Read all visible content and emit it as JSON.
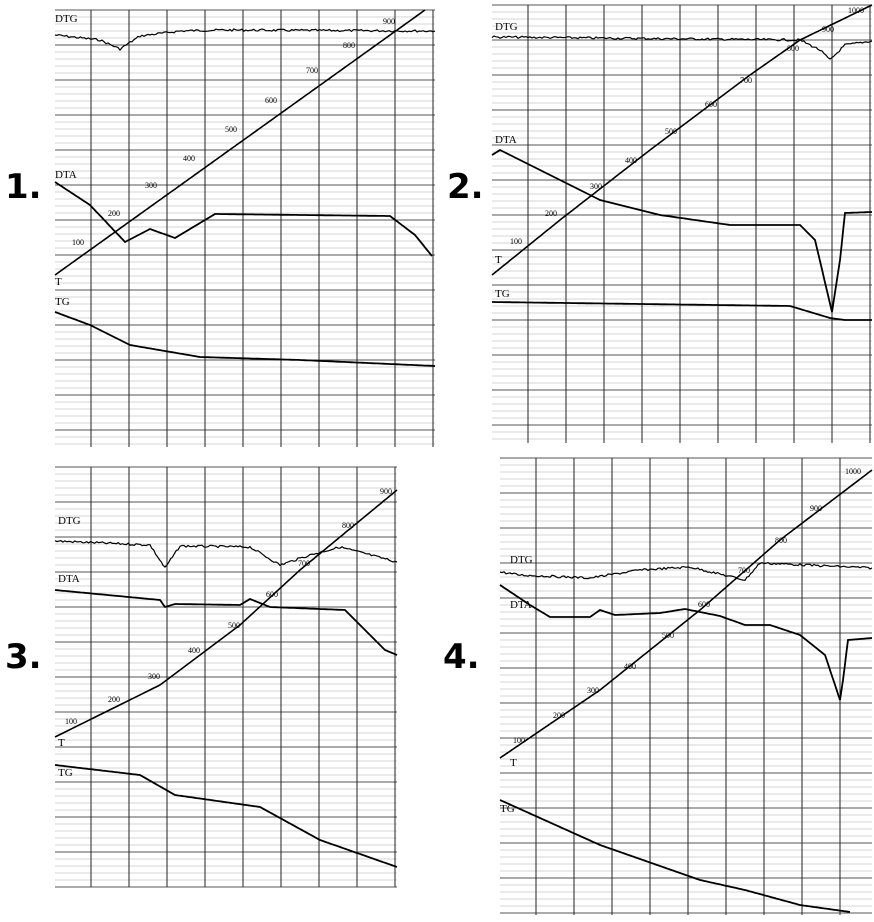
{
  "panels": [
    {
      "number": "1.",
      "curve_labels": [
        "DTG",
        "DTA",
        "T",
        "TG"
      ],
      "temperatures": [
        "100",
        "200",
        "300",
        "400",
        "500",
        "600",
        "700",
        "800",
        "900"
      ]
    },
    {
      "number": "2.",
      "curve_labels": [
        "DTG",
        "DTA",
        "T",
        "TG"
      ],
      "temperatures": [
        "100",
        "200",
        "300",
        "400",
        "500",
        "600",
        "700",
        "800",
        "900",
        "1000"
      ]
    },
    {
      "number": "3.",
      "curve_labels": [
        "DTG",
        "DTA",
        "T",
        "TG"
      ],
      "temperatures": [
        "100",
        "200",
        "300",
        "400",
        "500",
        "600",
        "700",
        "800",
        "900"
      ]
    },
    {
      "number": "4.",
      "curve_labels": [
        "DTG",
        "DTA",
        "T",
        "TG"
      ],
      "temperatures": [
        "100",
        "200",
        "300",
        "400",
        "500",
        "600",
        "700",
        "800",
        "900",
        "1000"
      ]
    }
  ]
}
